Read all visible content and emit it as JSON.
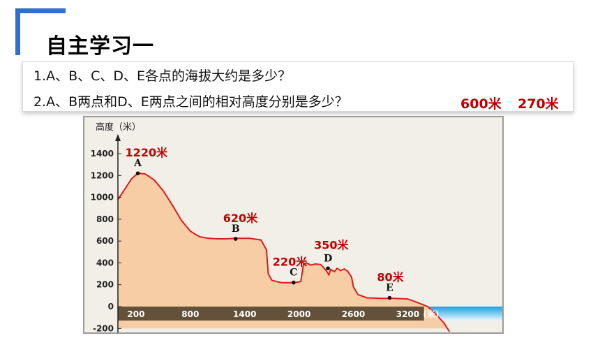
{
  "slide": {
    "title": "自主学习一",
    "questions": [
      "1.A、B、C、D、E各点的海拔大约是多少？",
      "2.A、B两点和D、E两点之间的相对高度分别是多少？"
    ],
    "answers": [
      "600米",
      "270米"
    ]
  },
  "colors": {
    "accent_blue": "#2f6fd1",
    "answer_red": "#c00000",
    "terrain_fill": "#f7cda6",
    "terrain_line": "#e01a1a",
    "sea": "#1aa3e0"
  },
  "chart_data": {
    "type": "area",
    "ylabel": "高度（米）",
    "x_unit_label": "(米)",
    "x_ticks": [
      "200",
      "800",
      "1400",
      "2000",
      "2600",
      "3200"
    ],
    "y_ticks": [
      "1400",
      "1200",
      "1000",
      "800",
      "600",
      "400",
      "200",
      "0",
      "-200"
    ],
    "ylim": [
      -200,
      1500
    ],
    "xlim": [
      0,
      3700
    ],
    "profile": [
      [
        0,
        980
      ],
      [
        80,
        1080
      ],
      [
        150,
        1170
      ],
      [
        220,
        1220
      ],
      [
        300,
        1215
      ],
      [
        400,
        1160
      ],
      [
        500,
        1060
      ],
      [
        600,
        930
      ],
      [
        700,
        790
      ],
      [
        800,
        690
      ],
      [
        900,
        640
      ],
      [
        1000,
        625
      ],
      [
        1100,
        620
      ],
      [
        1200,
        620
      ],
      [
        1300,
        625
      ],
      [
        1450,
        625
      ],
      [
        1580,
        610
      ],
      [
        1640,
        520
      ],
      [
        1660,
        300
      ],
      [
        1700,
        240
      ],
      [
        1800,
        220
      ],
      [
        1900,
        218
      ],
      [
        1960,
        220
      ],
      [
        2020,
        230
      ],
      [
        2050,
        390
      ],
      [
        2080,
        400
      ],
      [
        2130,
        380
      ],
      [
        2180,
        390
      ],
      [
        2240,
        385
      ],
      [
        2300,
        330
      ],
      [
        2330,
        290
      ],
      [
        2350,
        340
      ],
      [
        2390,
        320
      ],
      [
        2420,
        350
      ],
      [
        2460,
        330
      ],
      [
        2500,
        345
      ],
      [
        2540,
        320
      ],
      [
        2580,
        270
      ],
      [
        2600,
        180
      ],
      [
        2650,
        110
      ],
      [
        2750,
        80
      ],
      [
        2900,
        75
      ],
      [
        3050,
        75
      ],
      [
        3200,
        70
      ],
      [
        3330,
        30
      ],
      [
        3420,
        0
      ],
      [
        3500,
        -60
      ],
      [
        3600,
        -150
      ],
      [
        3660,
        -230
      ]
    ],
    "points": [
      {
        "name": "A",
        "x": 220,
        "y": 1220,
        "label": "1220米"
      },
      {
        "name": "B",
        "x": 1300,
        "y": 620,
        "label": "620米"
      },
      {
        "name": "C",
        "x": 1940,
        "y": 220,
        "label": "220米"
      },
      {
        "name": "D",
        "x": 2320,
        "y": 350,
        "label": "350米"
      },
      {
        "name": "E",
        "x": 3000,
        "y": 80,
        "label": "80米"
      }
    ]
  }
}
